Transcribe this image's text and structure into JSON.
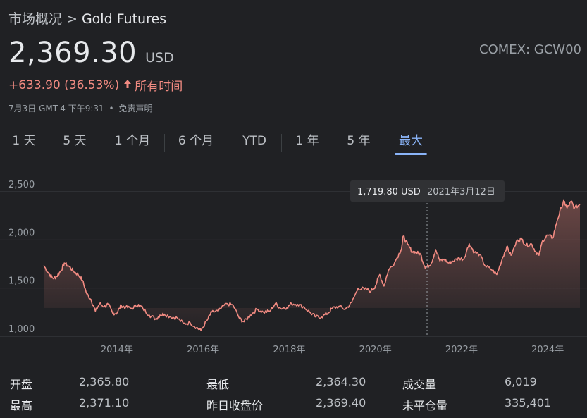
{
  "breadcrumb": {
    "parent": "市场概况",
    "separator": ">",
    "current": "Gold Futures"
  },
  "quote": {
    "price": "2,369.30",
    "currency": "USD",
    "exchange": "COMEX: GCW00",
    "change": "+633.90 (36.53%)",
    "change_period": "所有时间",
    "change_color": "#f28b82",
    "date_time": "7月3日 GMT-4 下午9:31",
    "meta_separator": "•",
    "disclaimer": "免责声明"
  },
  "tabs": [
    {
      "label": "1 天",
      "active": false
    },
    {
      "label": "5 天",
      "active": false
    },
    {
      "label": "1 个月",
      "active": false
    },
    {
      "label": "6 个月",
      "active": false
    },
    {
      "label": "YTD",
      "active": false
    },
    {
      "label": "1 年",
      "active": false
    },
    {
      "label": "5 年",
      "active": false
    },
    {
      "label": "最大",
      "active": true
    }
  ],
  "tooltip": {
    "value": "1,719.80 USD",
    "date": "2021年3月12日"
  },
  "chart_data": {
    "type": "area",
    "x_unit": "year",
    "x_tick_labels": [
      "2014年",
      "2016年",
      "2018年",
      "2020年",
      "2022年",
      "2024年"
    ],
    "x_ticks": [
      2014,
      2016,
      2018,
      2020,
      2022,
      2024
    ],
    "y_tick_labels": [
      "2,500",
      "2,000",
      "1,500",
      "1,000"
    ],
    "y_ticks": [
      2500,
      2000,
      1500,
      1000
    ],
    "ylim": [
      1000,
      2500
    ],
    "xlim": [
      2012.3,
      2024.75
    ],
    "grid": true,
    "line_color": "#f28b82",
    "highlight": {
      "x": 2021.2,
      "y": 1719.8
    },
    "points": [
      [
        2012.3,
        1735
      ],
      [
        2012.42,
        1650
      ],
      [
        2012.52,
        1600
      ],
      [
        2012.6,
        1620
      ],
      [
        2012.7,
        1680
      ],
      [
        2012.78,
        1760
      ],
      [
        2012.9,
        1720
      ],
      [
        2013.0,
        1670
      ],
      [
        2013.1,
        1640
      ],
      [
        2013.2,
        1580
      ],
      [
        2013.3,
        1440
      ],
      [
        2013.4,
        1380
      ],
      [
        2013.5,
        1260
      ],
      [
        2013.6,
        1340
      ],
      [
        2013.7,
        1310
      ],
      [
        2013.8,
        1330
      ],
      [
        2013.9,
        1240
      ],
      [
        2014.0,
        1240
      ],
      [
        2014.1,
        1320
      ],
      [
        2014.2,
        1300
      ],
      [
        2014.35,
        1290
      ],
      [
        2014.5,
        1330
      ],
      [
        2014.6,
        1290
      ],
      [
        2014.75,
        1220
      ],
      [
        2014.9,
        1180
      ],
      [
        2015.0,
        1220
      ],
      [
        2015.1,
        1230
      ],
      [
        2015.25,
        1200
      ],
      [
        2015.4,
        1190
      ],
      [
        2015.55,
        1130
      ],
      [
        2015.7,
        1140
      ],
      [
        2015.85,
        1090
      ],
      [
        2015.95,
        1060
      ],
      [
        2016.1,
        1170
      ],
      [
        2016.2,
        1250
      ],
      [
        2016.35,
        1260
      ],
      [
        2016.55,
        1340
      ],
      [
        2016.7,
        1320
      ],
      [
        2016.85,
        1180
      ],
      [
        2016.95,
        1150
      ],
      [
        2017.1,
        1220
      ],
      [
        2017.25,
        1280
      ],
      [
        2017.4,
        1250
      ],
      [
        2017.55,
        1260
      ],
      [
        2017.68,
        1340
      ],
      [
        2017.8,
        1290
      ],
      [
        2017.95,
        1300
      ],
      [
        2018.05,
        1340
      ],
      [
        2018.2,
        1330
      ],
      [
        2018.35,
        1300
      ],
      [
        2018.5,
        1240
      ],
      [
        2018.62,
        1200
      ],
      [
        2018.75,
        1200
      ],
      [
        2018.9,
        1240
      ],
      [
        2019.0,
        1290
      ],
      [
        2019.15,
        1310
      ],
      [
        2019.3,
        1280
      ],
      [
        2019.45,
        1350
      ],
      [
        2019.6,
        1500
      ],
      [
        2019.75,
        1490
      ],
      [
        2019.9,
        1470
      ],
      [
        2020.0,
        1520
      ],
      [
        2020.1,
        1640
      ],
      [
        2020.2,
        1520
      ],
      [
        2020.3,
        1680
      ],
      [
        2020.45,
        1770
      ],
      [
        2020.6,
        1900
      ],
      [
        2020.65,
        2040
      ],
      [
        2020.75,
        1950
      ],
      [
        2020.85,
        1880
      ],
      [
        2020.95,
        1870
      ],
      [
        2021.05,
        1850
      ],
      [
        2021.15,
        1720
      ],
      [
        2021.2,
        1720
      ],
      [
        2021.3,
        1760
      ],
      [
        2021.4,
        1900
      ],
      [
        2021.5,
        1780
      ],
      [
        2021.6,
        1800
      ],
      [
        2021.7,
        1760
      ],
      [
        2021.8,
        1780
      ],
      [
        2021.95,
        1810
      ],
      [
        2022.05,
        1800
      ],
      [
        2022.18,
        1960
      ],
      [
        2022.3,
        1870
      ],
      [
        2022.42,
        1850
      ],
      [
        2022.55,
        1730
      ],
      [
        2022.7,
        1690
      ],
      [
        2022.82,
        1640
      ],
      [
        2022.95,
        1810
      ],
      [
        2023.05,
        1930
      ],
      [
        2023.15,
        1840
      ],
      [
        2023.3,
        2000
      ],
      [
        2023.4,
        2010
      ],
      [
        2023.5,
        1940
      ],
      [
        2023.62,
        1960
      ],
      [
        2023.72,
        1880
      ],
      [
        2023.8,
        1840
      ],
      [
        2023.88,
        1990
      ],
      [
        2024.0,
        2050
      ],
      [
        2024.12,
        2020
      ],
      [
        2024.22,
        2200
      ],
      [
        2024.32,
        2340
      ],
      [
        2024.38,
        2400
      ],
      [
        2024.45,
        2330
      ],
      [
        2024.55,
        2400
      ],
      [
        2024.62,
        2330
      ],
      [
        2024.75,
        2370
      ]
    ]
  },
  "stats": [
    {
      "label": "开盘",
      "value": "2,365.80"
    },
    {
      "label": "最高",
      "value": "2,371.10"
    },
    {
      "label": "最低",
      "value": "2,364.30"
    },
    {
      "label": "昨日收盘价",
      "value": "2,369.40"
    },
    {
      "label": "成交量",
      "value": "6,019"
    },
    {
      "label": "未平仓量",
      "value": "335,401"
    }
  ]
}
